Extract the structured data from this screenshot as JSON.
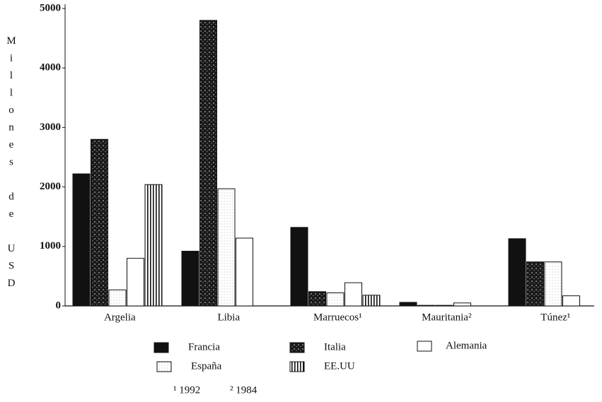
{
  "chart_data": {
    "type": "bar",
    "ylabel": "Millones de USD",
    "categories": [
      "Argelia",
      "Libia",
      "Marruecos¹",
      "Mauritania²",
      "Túnez¹"
    ],
    "series": [
      {
        "name": "Francia",
        "color": "#111111",
        "pattern": "solid",
        "values": [
          2220,
          920,
          1320,
          60,
          1130
        ]
      },
      {
        "name": "Italia",
        "color": "#1a1a1a",
        "pattern": "speckle",
        "values": [
          2800,
          4800,
          240,
          10,
          740
        ]
      },
      {
        "name": "España",
        "color": "#f2f2f2",
        "pattern": "dots",
        "values": [
          270,
          1970,
          220,
          10,
          740
        ]
      },
      {
        "name": "Alemania",
        "color": "#ffffff",
        "pattern": "outline",
        "values": [
          800,
          1140,
          390,
          50,
          170
        ]
      },
      {
        "name": "EE.UU",
        "color": "#ffffff",
        "pattern": "stripes",
        "values": [
          2040,
          null,
          180,
          null,
          null
        ]
      }
    ],
    "ylim": [
      0,
      5000
    ],
    "yticks": [
      0,
      1000,
      2000,
      3000,
      4000,
      5000
    ],
    "notes": [
      "¹ 1992",
      "² 1984"
    ]
  }
}
